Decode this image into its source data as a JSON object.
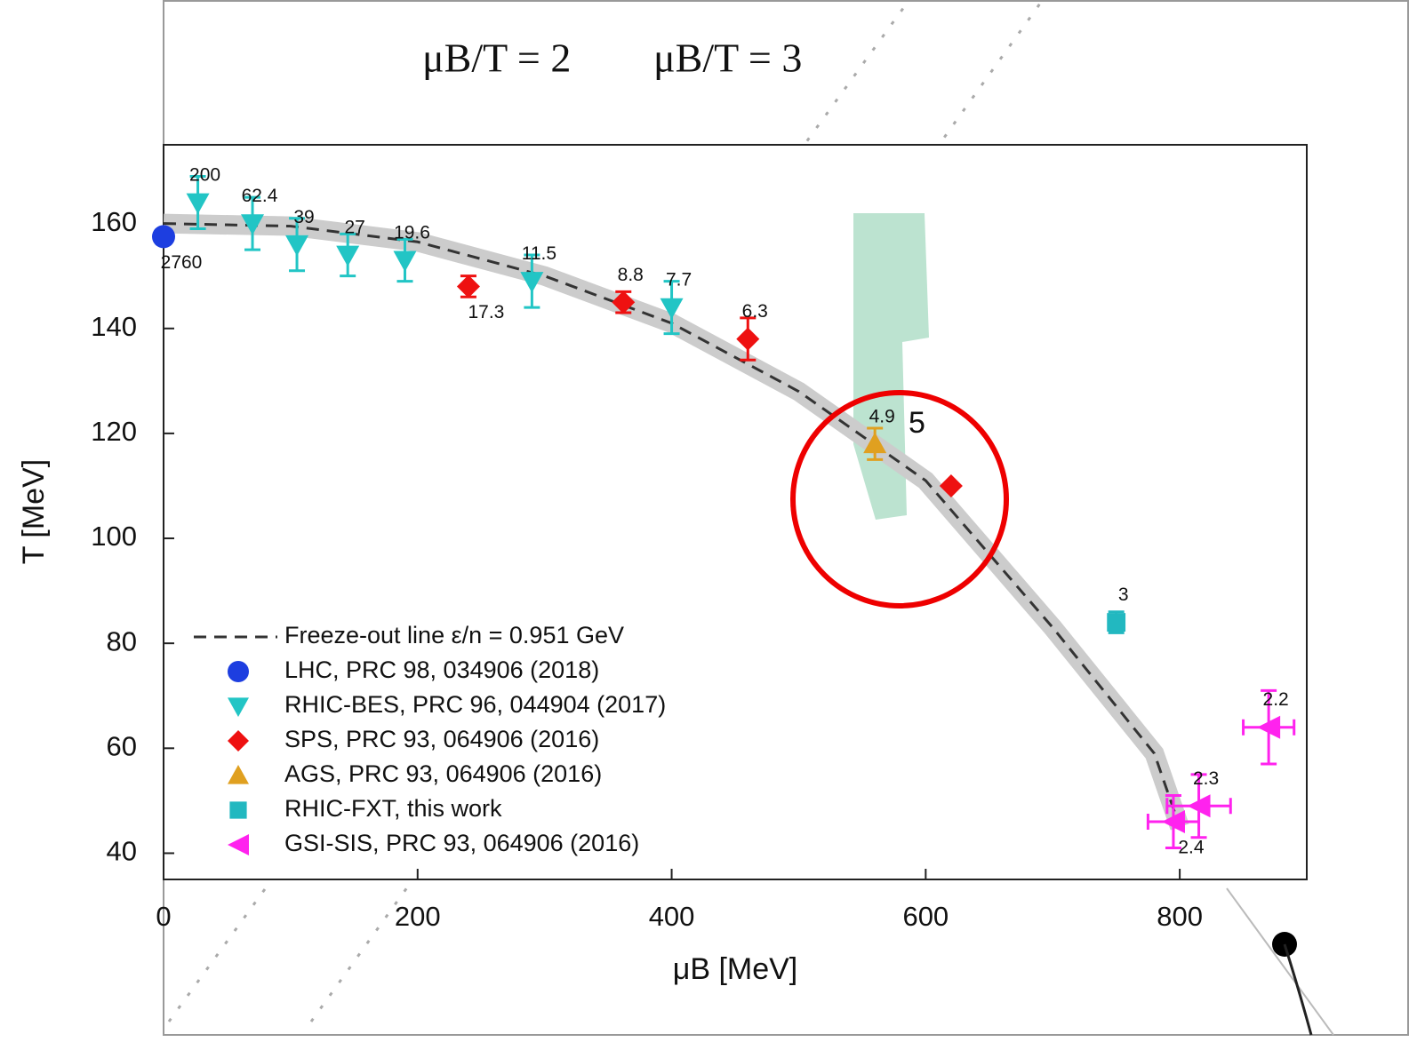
{
  "chart_data": {
    "type": "scatter",
    "xlabel": "μB [MeV]",
    "ylabel": "T [MeV]",
    "xlim": [
      0,
      900
    ],
    "ylim": [
      35,
      175
    ],
    "xticks": [
      0,
      200,
      400,
      600,
      800
    ],
    "yticks": [
      40,
      60,
      80,
      100,
      120,
      140,
      160
    ],
    "legend": "lower left",
    "annotations": [
      "μB/T = 2",
      "μB/T = 3",
      "5"
    ],
    "lines": [
      {
        "name": "Freeze-out line ε/n = 0.951 GeV",
        "color": "#333333",
        "style": "dashed",
        "x": [
          0,
          100,
          200,
          300,
          400,
          500,
          600,
          700,
          780,
          800
        ],
        "values": [
          160,
          159.5,
          156.5,
          150,
          141,
          128,
          111,
          83,
          59,
          45
        ]
      }
    ],
    "series": [
      {
        "name": "LHC, PRC 98, 034906 (2018)",
        "color": "#1d3ee0",
        "marker": "circle",
        "x": [
          0
        ],
        "values": [
          157.5
        ],
        "labels": [
          2760
        ]
      },
      {
        "name": "RHIC-BES, PRC 96, 044904 (2017)",
        "color": "#22c5c5",
        "marker": "triangle-down",
        "x": [
          27,
          70,
          105,
          145,
          190,
          290,
          400
        ],
        "values": [
          164,
          160,
          156,
          154,
          153,
          149,
          144
        ],
        "yerr": [
          5,
          5,
          5,
          4,
          4,
          5,
          5
        ],
        "labels": [
          200,
          62.4,
          39,
          27,
          19.6,
          11.5,
          7.7
        ]
      },
      {
        "name": "SPS, PRC 93, 064906 (2016)",
        "color": "#ee1111",
        "marker": "diamond",
        "x": [
          240,
          362,
          460,
          620
        ],
        "values": [
          148,
          145,
          138,
          110
        ],
        "yerr": [
          2,
          2,
          4,
          null
        ],
        "labels": [
          17.3,
          8.8,
          6.3,
          null
        ]
      },
      {
        "name": "AGS, PRC 93, 064906 (2016)",
        "color": "#e0a020",
        "marker": "triangle-up",
        "x": [
          560
        ],
        "values": [
          118
        ],
        "yerr": [
          3
        ],
        "labels": [
          4.9
        ]
      },
      {
        "name": "RHIC-FXT, this work",
        "color": "#22b8c0",
        "marker": "square",
        "x": [
          750
        ],
        "values": [
          84
        ],
        "yerr": [
          2
        ],
        "labels": [
          3
        ]
      },
      {
        "name": "GSI-SIS, PRC 93, 064906 (2016)",
        "color": "#ff22ee",
        "marker": "triangle-left",
        "x": [
          870,
          815,
          795
        ],
        "values": [
          64,
          49,
          46
        ],
        "yerr": [
          7,
          6,
          5
        ],
        "xerr": [
          20,
          25,
          20
        ],
        "labels": [
          2.2,
          2.3,
          2.4
        ]
      }
    ]
  }
}
